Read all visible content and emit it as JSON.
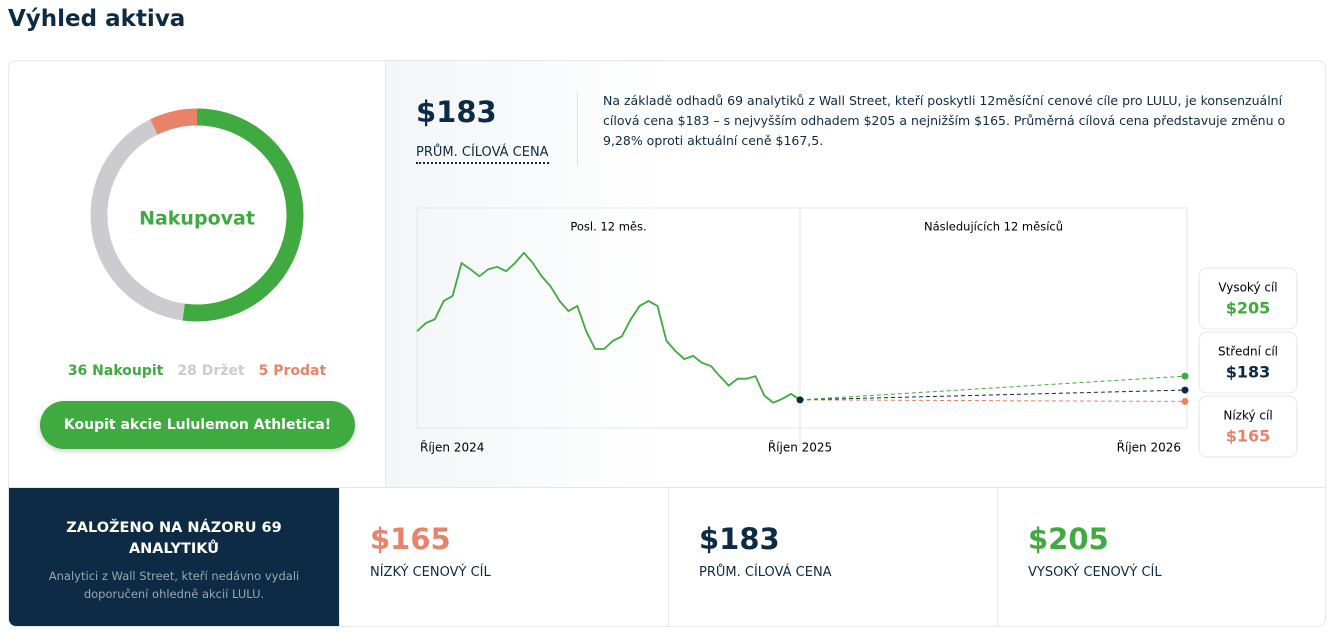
{
  "header": {
    "title": "Výhled aktiva"
  },
  "summary": {
    "price": "$183",
    "price_label": "PRŮM. CÍLOVÁ CENA",
    "text": "Na základě odhadů 69 analytiků z Wall Street, kteří poskytli 12měsíční cenové cíle pro LULU, je konsenzuální cílová cena $183 – s nejvyšším odhadem $205 a nejnižším $165. Průměrná cílová cena představuje změnu o 9,28% oproti aktuální ceně $167,5."
  },
  "button": {
    "label": "Koupit akcie Lululemon Athletica!"
  },
  "chart_data": [
    {
      "type": "donut",
      "center_label": "Nakupovat",
      "categories": [
        "Nakoupit",
        "Držet",
        "Prodat"
      ],
      "values": [
        36,
        28,
        5
      ],
      "colors": [
        "#3faa3f",
        "#cccbd0",
        "#e8836a"
      ]
    },
    {
      "type": "line",
      "panels": [
        "Posl. 12 měs.",
        "Následujících 12 měsíců"
      ],
      "x_labels": [
        "Říjen 2024",
        "Říjen 2025",
        "Říjen 2026"
      ],
      "ylim": [
        123,
        471
      ],
      "series": [
        {
          "color": "#3faa3f",
          "values": [
            276,
            289,
            295,
            324,
            332,
            384,
            374,
            363,
            374,
            378,
            371,
            384,
            400,
            384,
            363,
            347,
            324,
            308,
            316,
            276,
            248,
            248,
            261,
            268,
            295,
            316,
            324,
            316,
            261,
            245,
            232,
            237,
            226,
            221,
            205,
            190,
            201,
            201,
            205,
            174,
            163,
            169,
            177,
            167.5
          ]
        }
      ],
      "targets": {
        "labels": [
          "Vysoký cíl",
          "Střední cíl",
          "Nízký cíl"
        ],
        "values": [
          205,
          183,
          165
        ],
        "value_labels": [
          "$205",
          "$183",
          "$165"
        ],
        "colors": [
          "#3faa3f",
          "#0d2b45",
          "#e8836a"
        ]
      }
    }
  ],
  "footer": {
    "title": "ZALOŽENO NA NÁZORU 69 ANALYTIKŮ",
    "subtitle": "Analytici z Wall Street, kteří nedávno vydali doporučení ohledně akcií LULU.",
    "items": [
      {
        "value": "$165",
        "label": "NÍZKÝ CENOVÝ CÍL",
        "color": "#e8836a"
      },
      {
        "value": "$183",
        "label": "PRŮM. CÍLOVÁ CENA",
        "color": "#0d2b45"
      },
      {
        "value": "$205",
        "label": "VYSOKÝ CENOVÝ CÍL",
        "color": "#3faa3f"
      }
    ]
  }
}
